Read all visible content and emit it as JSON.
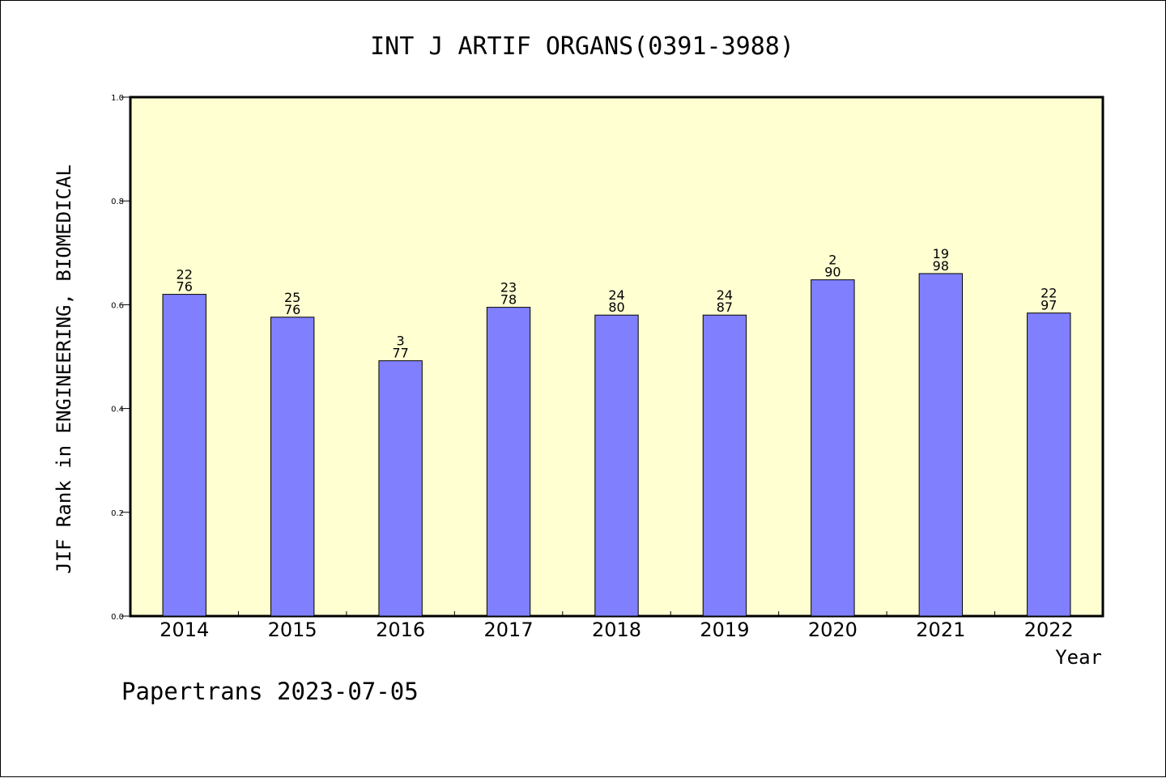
{
  "chart_data": {
    "type": "bar",
    "title": "INT J ARTIF ORGANS(0391-3988)",
    "xlabel": "Year",
    "ylabel": "JIF Rank in ENGINEERING, BIOMEDICAL",
    "categories": [
      "2014",
      "2015",
      "2016",
      "2017",
      "2018",
      "2019",
      "2020",
      "2021",
      "2022"
    ],
    "values": [
      0.62,
      0.576,
      0.492,
      0.595,
      0.58,
      0.58,
      0.648,
      0.66,
      0.584
    ],
    "bar_labels": [
      [
        "22",
        "76"
      ],
      [
        "25",
        "76"
      ],
      [
        "3",
        "77"
      ],
      [
        "23",
        "78"
      ],
      [
        "24",
        "80"
      ],
      [
        "24",
        "87"
      ],
      [
        "2",
        "90"
      ],
      [
        "19",
        "98"
      ],
      [
        "22",
        "97"
      ]
    ],
    "ylim": [
      0.0,
      1.0
    ],
    "yticks": [
      "0.0",
      "0.2",
      "0.4",
      "0.6",
      "0.8",
      "1.0"
    ],
    "grid": false,
    "colors": {
      "plot_background": "#ffffd2",
      "bar_fill": "#8080ff",
      "bar_stroke": "#000000",
      "axis": "#000000"
    }
  },
  "footer": {
    "text": "Papertrans 2023-07-05"
  }
}
